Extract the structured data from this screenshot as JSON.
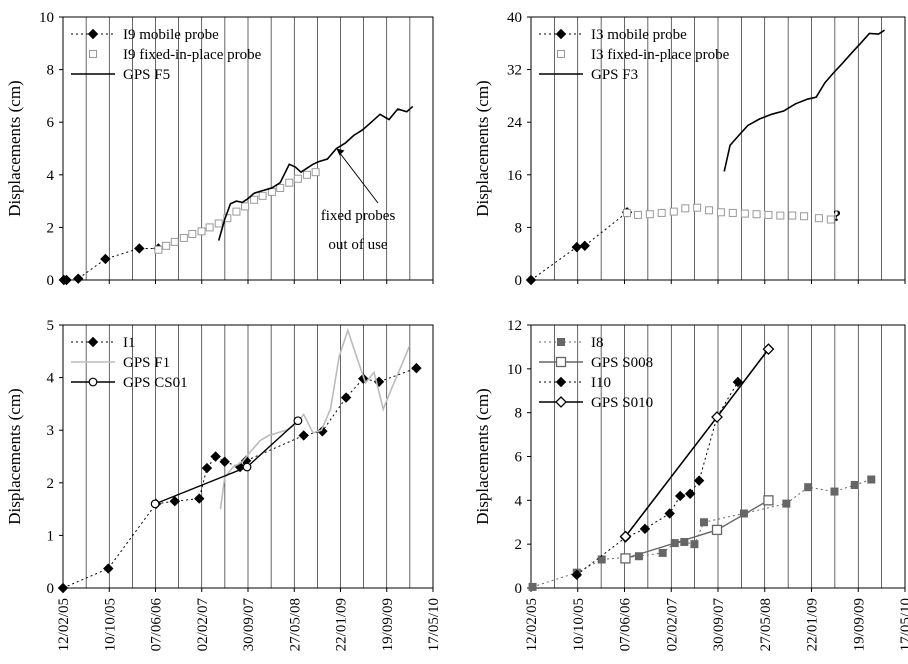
{
  "chart_data": [
    {
      "type": "line",
      "ylabel": "Displacements (cm)",
      "ylim": [
        0,
        10
      ],
      "yticks": [
        "0",
        "2",
        "4",
        "6",
        "8",
        "10"
      ],
      "xticks": [
        "12/02/05",
        "10/10/05",
        "07/06/06",
        "02/02/07",
        "30/09/07",
        "27/05/08",
        "22/01/09",
        "19/09/09",
        "17/05/10"
      ],
      "grid": "vertical",
      "legend_position": "top-left",
      "series": [
        {
          "name": "I9 mobile probe",
          "style": "dotted-diamond",
          "color": "#000000",
          "x": [
            "2005-02-16",
            "2005-03-02",
            "2005-05-02",
            "2005-09-20",
            "2006-03-15",
            "2006-06-22"
          ],
          "y": [
            0,
            0,
            0.05,
            0.8,
            1.2,
            1.2
          ]
        },
        {
          "name": "I9 fixed-in-place probe",
          "style": "open-square",
          "color": "#999999",
          "x": [
            "2006-06-22",
            "2006-08-01",
            "2006-09-15",
            "2006-11-01",
            "2006-12-15",
            "2007-02-01",
            "2007-03-15",
            "2007-05-01",
            "2007-06-15",
            "2007-08-01",
            "2007-09-15",
            "2007-11-01",
            "2007-12-15",
            "2008-02-01",
            "2008-03-15",
            "2008-05-01",
            "2008-06-15",
            "2008-08-01",
            "2008-09-15"
          ],
          "y": [
            1.15,
            1.3,
            1.45,
            1.6,
            1.75,
            1.85,
            2.0,
            2.15,
            2.35,
            2.6,
            2.8,
            3.05,
            3.2,
            3.35,
            3.5,
            3.7,
            3.85,
            4.0,
            4.1
          ]
        },
        {
          "name": "GPS F5",
          "style": "solid",
          "color": "#000000",
          "x": [
            "2007-05-01",
            "2007-06-01",
            "2007-07-01",
            "2007-08-01",
            "2007-09-01",
            "2007-10-01",
            "2007-11-01",
            "2007-12-15",
            "2008-02-01",
            "2008-03-15",
            "2008-05-01",
            "2008-06-01",
            "2008-07-01",
            "2008-08-01",
            "2008-09-01",
            "2008-10-01",
            "2008-11-15",
            "2009-01-01",
            "2009-02-15",
            "2009-04-01",
            "2009-05-15",
            "2009-07-01",
            "2009-08-15",
            "2009-10-01",
            "2009-11-15",
            "2010-01-01",
            "2010-02-01"
          ],
          "y": [
            1.5,
            2.3,
            2.9,
            3.0,
            2.95,
            3.1,
            3.3,
            3.4,
            3.5,
            3.7,
            4.4,
            4.3,
            4.1,
            4.25,
            4.4,
            4.5,
            4.6,
            5.0,
            5.2,
            5.5,
            5.7,
            6.0,
            6.3,
            6.1,
            6.5,
            6.4,
            6.6
          ]
        }
      ],
      "annotations": [
        {
          "text": "fixed probes",
          "arrow_to": [
            "2009-01-01",
            5.0
          ]
        },
        {
          "text": "out of use"
        }
      ]
    },
    {
      "type": "line",
      "ylabel": "Displacements (cm)",
      "ylim": [
        0,
        40
      ],
      "yticks": [
        "0",
        "8",
        "16",
        "24",
        "32",
        "40"
      ],
      "xticks": [
        "12/02/05",
        "10/10/05",
        "07/06/06",
        "02/02/07",
        "30/09/07",
        "27/05/08",
        "22/01/09",
        "19/09/09",
        "17/05/10"
      ],
      "grid": "vertical",
      "legend_position": "top-left",
      "series": [
        {
          "name": "I3 mobile probe",
          "style": "dotted-diamond",
          "color": "#000000",
          "x": [
            "2005-02-12",
            "2005-10-05",
            "2005-11-15",
            "2006-06-20"
          ],
          "y": [
            0,
            5,
            5.2,
            10.3
          ]
        },
        {
          "name": "I3 fixed-in-place probe",
          "style": "open-square",
          "color": "#999999",
          "x": [
            "2006-06-20",
            "2006-08-15",
            "2006-10-15",
            "2006-12-15",
            "2007-02-15",
            "2007-04-15",
            "2007-06-15",
            "2007-08-15",
            "2007-10-15",
            "2007-12-15",
            "2008-02-15",
            "2008-04-15",
            "2008-06-15",
            "2008-08-15",
            "2008-10-15",
            "2008-12-15",
            "2009-03-01",
            "2009-05-01"
          ],
          "y": [
            10.2,
            9.9,
            10.0,
            10.2,
            10.4,
            10.9,
            11.0,
            10.6,
            10.3,
            10.2,
            10.1,
            10.0,
            9.9,
            9.8,
            9.8,
            9.7,
            9.4,
            9.2
          ]
        },
        {
          "name": "GPS F3",
          "style": "solid",
          "color": "#000000",
          "x": [
            "2007-11-01",
            "2007-12-01",
            "2008-01-15",
            "2008-03-01",
            "2008-05-01",
            "2008-07-01",
            "2008-09-01",
            "2008-11-01",
            "2009-01-01",
            "2009-02-15",
            "2009-04-01",
            "2009-05-15",
            "2009-07-01",
            "2009-08-15",
            "2009-10-01",
            "2009-11-15",
            "2010-01-01",
            "2010-02-01"
          ],
          "y": [
            16.5,
            20.5,
            22.0,
            23.5,
            24.5,
            25.2,
            25.7,
            26.8,
            27.5,
            27.8,
            30.0,
            31.5,
            33.0,
            34.5,
            36.0,
            37.5,
            37.4,
            38.0
          ]
        }
      ],
      "annotations": [
        {
          "text": "?"
        }
      ]
    },
    {
      "type": "line",
      "ylabel": "Displacements (cm)",
      "ylim": [
        0,
        5
      ],
      "yticks": [
        "0",
        "1",
        "2",
        "3",
        "4",
        "5"
      ],
      "xticks": [
        "12/02/05",
        "10/10/05",
        "07/06/06",
        "02/02/07",
        "30/09/07",
        "27/05/08",
        "22/01/09",
        "19/09/09",
        "17/05/10"
      ],
      "grid": "vertical",
      "legend_position": "top-left",
      "series": [
        {
          "name": "I1",
          "style": "dotted-diamond",
          "color": "#000000",
          "x": [
            "2005-02-12",
            "2005-10-05",
            "2006-06-10",
            "2006-09-15",
            "2007-01-20",
            "2007-03-01",
            "2007-04-15",
            "2007-06-01",
            "2007-08-20",
            "2007-09-20",
            "2008-07-15",
            "2008-10-20",
            "2009-02-20",
            "2009-05-20",
            "2009-08-10",
            "2010-02-20"
          ],
          "y": [
            0,
            0.37,
            1.6,
            1.65,
            1.7,
            2.28,
            2.5,
            2.4,
            2.3,
            2.42,
            2.9,
            2.98,
            3.62,
            3.98,
            3.92,
            4.18
          ]
        },
        {
          "name": "GPS F1",
          "style": "solid",
          "color": "#bbbbbb",
          "x": [
            "2007-05-10",
            "2007-06-01",
            "2007-07-15",
            "2007-09-01",
            "2007-10-15",
            "2007-12-01",
            "2008-01-15",
            "2008-03-01",
            "2008-04-15",
            "2008-06-01",
            "2008-07-15",
            "2008-09-01",
            "2008-10-15",
            "2008-12-01",
            "2009-01-15",
            "2009-03-01",
            "2009-04-15",
            "2009-06-01",
            "2009-07-15",
            "2009-09-01",
            "2009-10-15",
            "2009-12-01",
            "2010-01-15"
          ],
          "y": [
            1.5,
            2.1,
            2.3,
            2.4,
            2.6,
            2.8,
            2.9,
            2.95,
            3.0,
            3.1,
            3.3,
            2.95,
            3.0,
            3.4,
            4.4,
            4.9,
            4.4,
            3.9,
            4.1,
            3.4,
            3.8,
            4.2,
            4.6
          ]
        },
        {
          "name": "GPS CS01",
          "style": "solid-circle",
          "color": "#000000",
          "x": [
            "2006-06-05",
            "2007-09-25",
            "2008-06-15"
          ],
          "y": [
            1.6,
            2.3,
            3.18
          ]
        }
      ]
    },
    {
      "type": "line",
      "ylabel": "Displacements (cm)",
      "ylim": [
        0,
        12
      ],
      "yticks": [
        "0",
        "2",
        "4",
        "6",
        "8",
        "10",
        "12"
      ],
      "xticks": [
        "12/02/05",
        "10/10/05",
        "07/06/06",
        "02/02/07",
        "30/09/07",
        "27/05/08",
        "22/01/09",
        "19/09/09",
        "17/05/10"
      ],
      "grid": "vertical",
      "legend_position": "top-left",
      "series": [
        {
          "name": "I8",
          "style": "dotted-square-filled",
          "color": "#666666",
          "x": [
            "2005-02-20",
            "2005-10-05",
            "2006-02-10",
            "2006-08-20",
            "2006-12-20",
            "2007-02-20",
            "2007-04-10",
            "2007-06-01",
            "2007-07-20",
            "2008-02-10",
            "2008-09-15",
            "2009-01-05",
            "2009-05-20",
            "2009-09-01",
            "2009-11-25"
          ],
          "y": [
            0.05,
            0.7,
            1.3,
            1.45,
            1.6,
            2.05,
            2.1,
            2.0,
            3.0,
            3.4,
            3.85,
            4.6,
            4.4,
            4.7,
            4.95
          ]
        },
        {
          "name": "GPS S008",
          "style": "solid-open-square",
          "color": "#666666",
          "x": [
            "2006-06-12",
            "2007-09-25",
            "2008-06-15"
          ],
          "y": [
            1.35,
            2.65,
            4.0
          ]
        },
        {
          "name": "I10",
          "style": "dotted-diamond",
          "color": "#000000",
          "x": [
            "2005-10-05",
            "2006-06-12",
            "2006-09-20",
            "2007-01-25",
            "2007-03-20",
            "2007-05-10",
            "2007-06-25",
            "2007-09-25",
            "2008-01-10"
          ],
          "y": [
            0.6,
            2.3,
            2.7,
            3.4,
            4.2,
            4.3,
            4.9,
            7.8,
            9.4
          ]
        },
        {
          "name": "GPS S010",
          "style": "solid-open-diamond",
          "color": "#000000",
          "x": [
            "2006-06-12",
            "2007-09-25",
            "2008-06-15"
          ],
          "y": [
            2.35,
            7.8,
            10.9
          ]
        }
      ]
    }
  ]
}
